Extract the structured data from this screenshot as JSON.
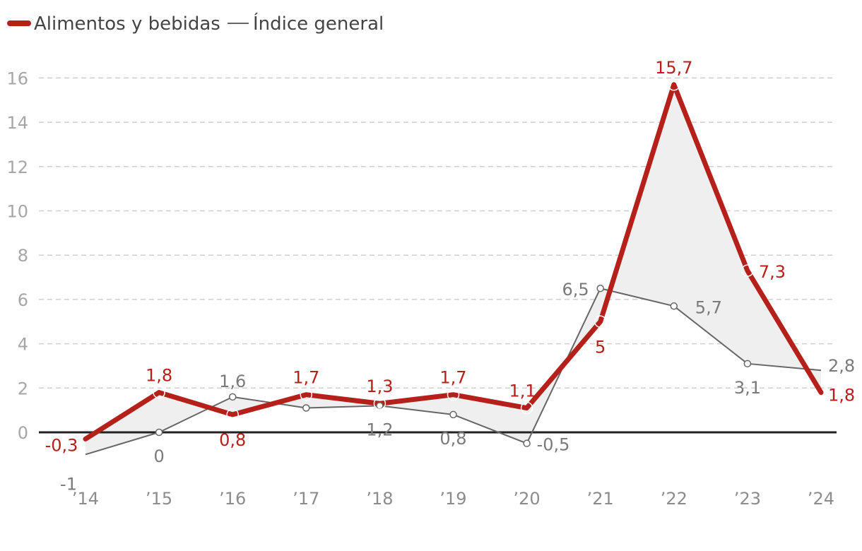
{
  "chart_data": {
    "type": "line",
    "categories": [
      "’14",
      "’15",
      "’16",
      "’17",
      "’18",
      "’19",
      "’20",
      "’21",
      "’22",
      "’23",
      "’24"
    ],
    "series": [
      {
        "name": "Alimentos y bebidas",
        "color": "#b5201a",
        "values": [
          -0.3,
          1.8,
          0.8,
          1.7,
          1.3,
          1.7,
          1.1,
          5,
          15.7,
          7.3,
          1.8
        ],
        "labels": [
          "-0,3",
          "1,8",
          "0,8",
          "1,7",
          "1,3",
          "1,7",
          "1,1",
          "5",
          "15,7",
          "7,3",
          "1,8"
        ]
      },
      {
        "name": "Índice general",
        "color": "#666666",
        "values": [
          -1,
          0,
          1.6,
          1.1,
          1.2,
          0.8,
          -0.5,
          6.5,
          5.7,
          3.1,
          2.8
        ],
        "labels": [
          "-1",
          "0",
          "1,6",
          "",
          "1,2",
          "0,8",
          "-0,5",
          "6,5",
          "5,7",
          "3,1",
          "2,8"
        ]
      }
    ],
    "yticks": [
      "0",
      "2",
      "4",
      "6",
      "8",
      "10",
      "12",
      "14",
      "16"
    ],
    "ylim": [
      -2,
      16.5
    ],
    "grid": true,
    "legend_position": "top-left",
    "gap_fill_color": "#efefef"
  }
}
